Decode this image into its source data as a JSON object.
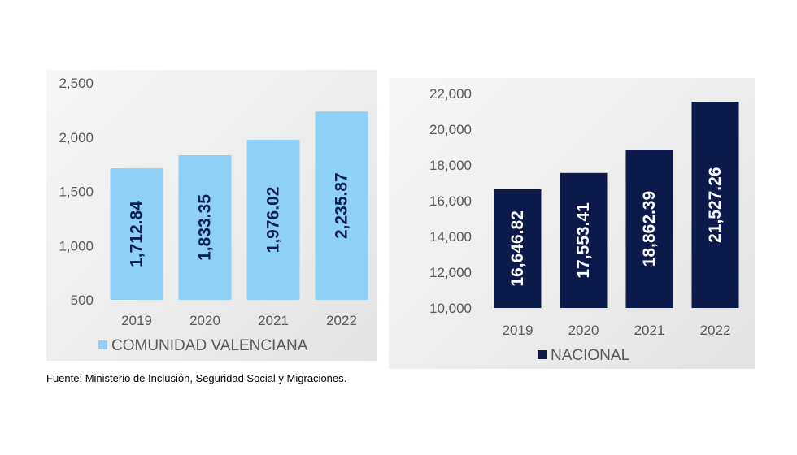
{
  "chart_data": [
    {
      "type": "bar",
      "categories": [
        "2019",
        "2020",
        "2021",
        "2022"
      ],
      "values": [
        1712.84,
        1833.35,
        1976.02,
        2235.87
      ],
      "value_labels": [
        "1,712.84",
        "1,833.35",
        "1,976.02",
        "2,235.87"
      ],
      "series_name": "COMUNIDAD VALENCIANA",
      "ylim": [
        500,
        2500
      ],
      "yticks": [
        500,
        1000,
        1500,
        2000,
        2500
      ],
      "ytick_labels": [
        "500",
        "1,000",
        "1,500",
        "2,000",
        "2,500"
      ],
      "legend_position": "bottom-left",
      "colors": {
        "bar": "#8fd1f6",
        "label": "#0d1f50"
      }
    },
    {
      "type": "bar",
      "categories": [
        "2019",
        "2020",
        "2021",
        "2022"
      ],
      "values": [
        16646.82,
        17553.41,
        18862.39,
        21527.26
      ],
      "value_labels": [
        "16,646.82",
        "17,553.41",
        "18,862.39",
        "21,527.26"
      ],
      "series_name": "NACIONAL",
      "ylim": [
        10000,
        22000
      ],
      "yticks": [
        10000,
        12000,
        14000,
        16000,
        18000,
        20000,
        22000
      ],
      "ytick_labels": [
        "10,000",
        "12,000",
        "14,000",
        "16,000",
        "18,000",
        "20,000",
        "22,000"
      ],
      "legend_position": "bottom-left",
      "colors": {
        "bar": "#0c1a4b",
        "label": "#ffffff"
      }
    }
  ],
  "source_note": "Fuente: Ministerio de Inclusión, Seguridad Social y Migraciones."
}
